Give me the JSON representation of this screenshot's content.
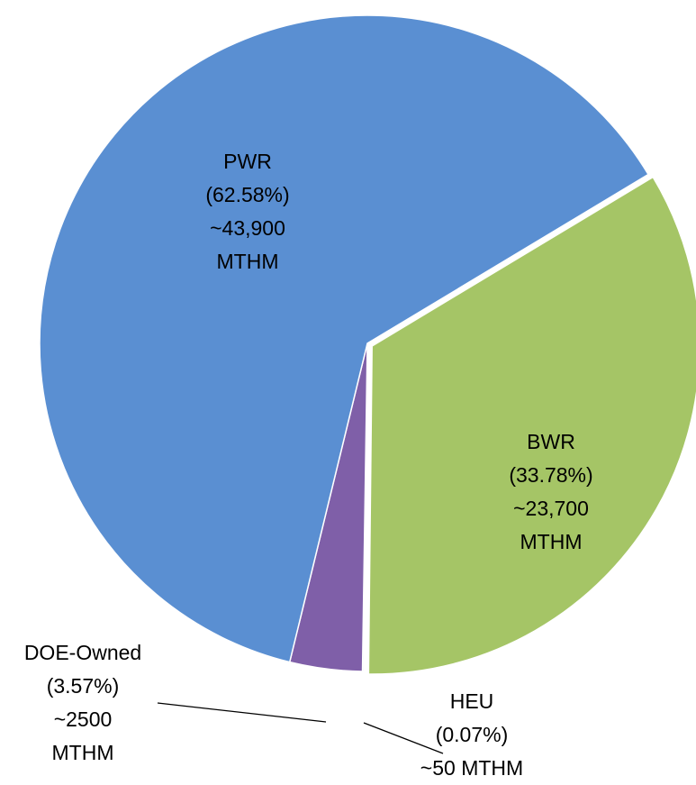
{
  "chart_data": {
    "type": "pie",
    "categories": [
      "BWR",
      "HEU",
      "DOE-Owned",
      "PWR"
    ],
    "values": [
      33.78,
      0.07,
      3.57,
      62.58
    ],
    "value_labels": [
      "(33.78%)",
      "(0.07%)",
      "(3.57%)",
      "(62.58%)"
    ],
    "amount_labels": [
      [
        "~23,700",
        "MTHM"
      ],
      [
        "~50 MTHM"
      ],
      [
        "~2500",
        "MTHM"
      ],
      [
        "~43,900",
        "MTHM"
      ]
    ],
    "colors": [
      "#a5c566",
      "#4bacc6",
      "#7f5fa8",
      "#5a8fd2"
    ]
  }
}
